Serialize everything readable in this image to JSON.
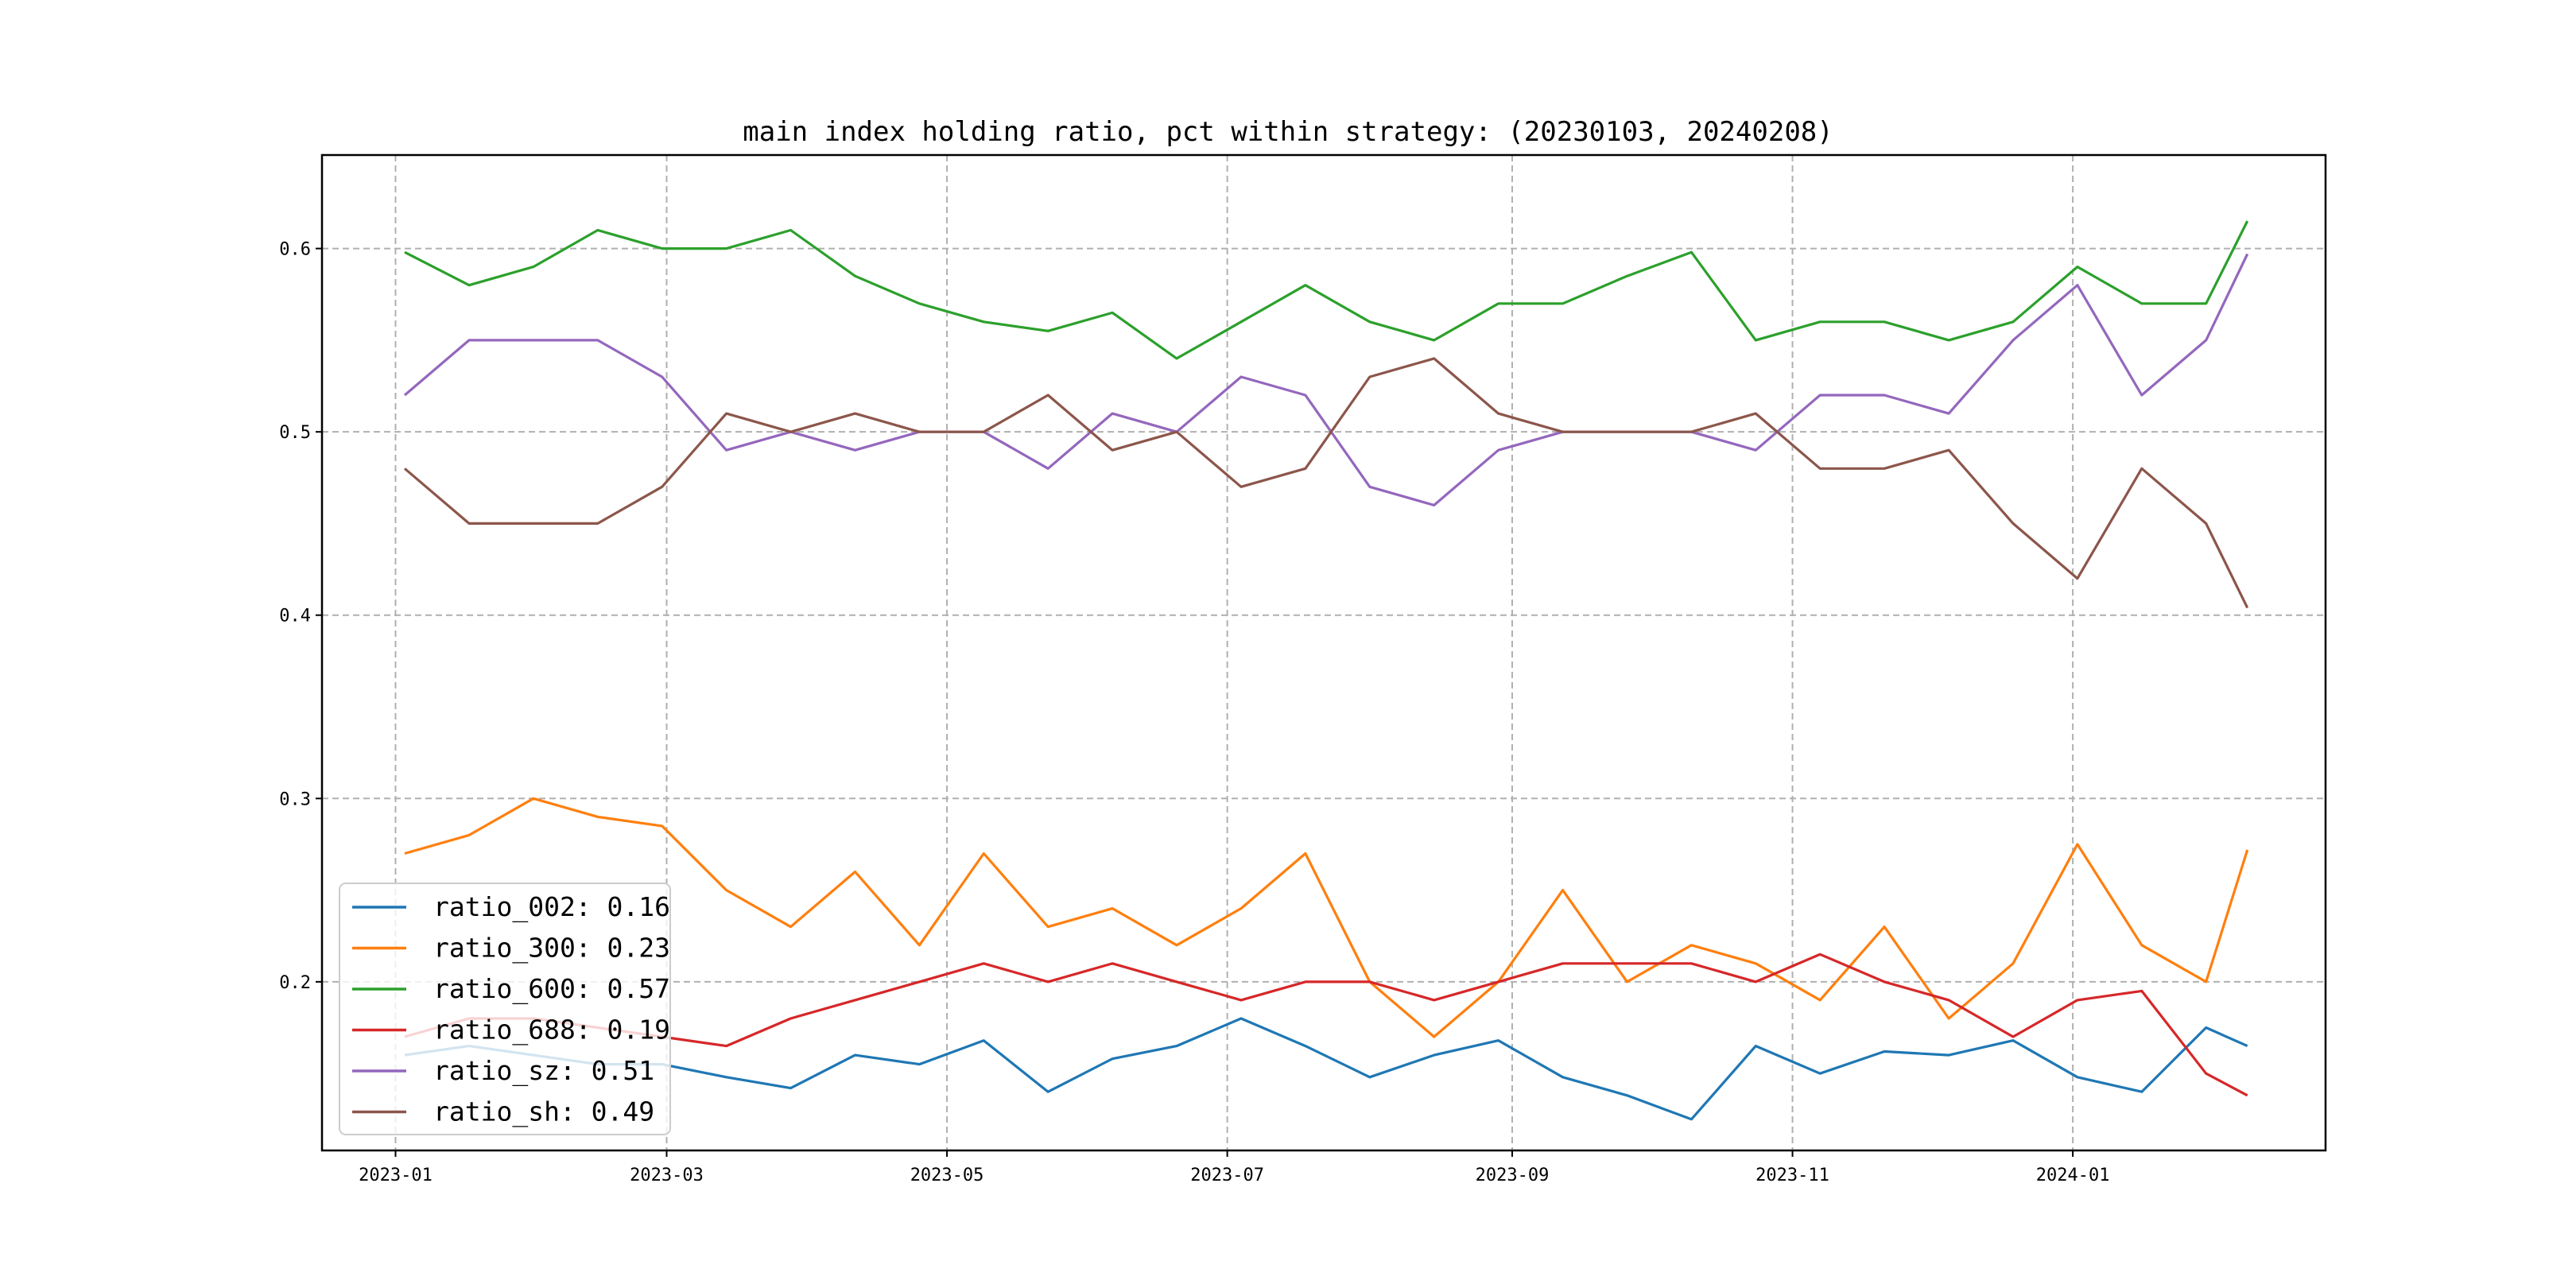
{
  "chart_data": {
    "type": "line",
    "title": "main index holding ratio, pct within strategy: (20230103, 20240208)",
    "xlabel": "",
    "ylabel": "",
    "x_range": [
      "2022-12-16",
      "2024-02-25"
    ],
    "ylim": [
      0.108,
      0.651
    ],
    "x_ticks": [
      {
        "date": "2023-01-01",
        "label": "2023-01"
      },
      {
        "date": "2023-03-01",
        "label": "2023-03"
      },
      {
        "date": "2023-05-01",
        "label": "2023-05"
      },
      {
        "date": "2023-07-01",
        "label": "2023-07"
      },
      {
        "date": "2023-09-01",
        "label": "2023-09"
      },
      {
        "date": "2023-11-01",
        "label": "2023-11"
      },
      {
        "date": "2024-01-01",
        "label": "2024-01"
      }
    ],
    "y_ticks": [
      {
        "value": 0.2,
        "label": "0.2"
      },
      {
        "value": 0.3,
        "label": "0.3"
      },
      {
        "value": 0.4,
        "label": "0.4"
      },
      {
        "value": 0.5,
        "label": "0.5"
      },
      {
        "value": 0.6,
        "label": "0.6"
      }
    ],
    "grid": true,
    "legend_position": "lower-left",
    "x": [
      "2023-01-03",
      "2023-01-17",
      "2023-01-31",
      "2023-02-14",
      "2023-02-28",
      "2023-03-14",
      "2023-03-28",
      "2023-04-11",
      "2023-04-25",
      "2023-05-09",
      "2023-05-23",
      "2023-06-06",
      "2023-06-20",
      "2023-07-04",
      "2023-07-18",
      "2023-08-01",
      "2023-08-15",
      "2023-08-29",
      "2023-09-12",
      "2023-09-26",
      "2023-10-10",
      "2023-10-24",
      "2023-11-07",
      "2023-11-21",
      "2023-12-05",
      "2023-12-19",
      "2024-01-02",
      "2024-01-16",
      "2024-01-30",
      "2024-02-08"
    ],
    "series": [
      {
        "name": "ratio_002",
        "label": "ratio_002: 0.16",
        "color": "#1f77b4",
        "values": [
          0.16,
          0.165,
          0.16,
          0.155,
          0.155,
          0.148,
          0.142,
          0.16,
          0.155,
          0.168,
          0.14,
          0.158,
          0.165,
          0.18,
          0.165,
          0.148,
          0.16,
          0.168,
          0.148,
          0.138,
          0.125,
          0.165,
          0.15,
          0.162,
          0.16,
          0.168,
          0.148,
          0.14,
          0.175,
          0.165
        ]
      },
      {
        "name": "ratio_300",
        "label": "ratio_300: 0.23",
        "color": "#ff7f0e",
        "values": [
          0.27,
          0.28,
          0.3,
          0.29,
          0.285,
          0.25,
          0.23,
          0.26,
          0.22,
          0.27,
          0.23,
          0.24,
          0.22,
          0.24,
          0.27,
          0.2,
          0.17,
          0.2,
          0.25,
          0.2,
          0.22,
          0.21,
          0.19,
          0.23,
          0.18,
          0.21,
          0.275,
          0.22,
          0.2,
          0.272
        ]
      },
      {
        "name": "ratio_600",
        "label": "ratio_600: 0.57",
        "color": "#2ca02c",
        "values": [
          0.598,
          0.58,
          0.59,
          0.61,
          0.6,
          0.6,
          0.61,
          0.585,
          0.57,
          0.56,
          0.555,
          0.565,
          0.54,
          0.56,
          0.58,
          0.56,
          0.55,
          0.57,
          0.57,
          0.585,
          0.598,
          0.55,
          0.56,
          0.56,
          0.55,
          0.56,
          0.59,
          0.57,
          0.57,
          0.615
        ]
      },
      {
        "name": "ratio_688",
        "label": "ratio_688: 0.19",
        "color": "#d62728",
        "values": [
          0.17,
          0.18,
          0.18,
          0.175,
          0.17,
          0.165,
          0.18,
          0.19,
          0.2,
          0.21,
          0.2,
          0.21,
          0.2,
          0.19,
          0.2,
          0.2,
          0.19,
          0.2,
          0.21,
          0.21,
          0.21,
          0.2,
          0.215,
          0.2,
          0.19,
          0.17,
          0.19,
          0.195,
          0.15,
          0.138
        ]
      },
      {
        "name": "ratio_sz",
        "label": "ratio_sz: 0.51",
        "color": "#9467bd",
        "values": [
          0.52,
          0.55,
          0.55,
          0.55,
          0.53,
          0.49,
          0.5,
          0.49,
          0.5,
          0.5,
          0.48,
          0.51,
          0.5,
          0.53,
          0.52,
          0.47,
          0.46,
          0.49,
          0.5,
          0.5,
          0.5,
          0.49,
          0.52,
          0.52,
          0.51,
          0.55,
          0.58,
          0.52,
          0.55,
          0.597
        ]
      },
      {
        "name": "ratio_sh",
        "label": "ratio_sh: 0.49",
        "color": "#8c564b",
        "values": [
          0.48,
          0.45,
          0.45,
          0.45,
          0.47,
          0.51,
          0.5,
          0.51,
          0.5,
          0.5,
          0.52,
          0.49,
          0.5,
          0.47,
          0.48,
          0.53,
          0.54,
          0.51,
          0.5,
          0.5,
          0.5,
          0.51,
          0.48,
          0.48,
          0.49,
          0.45,
          0.42,
          0.48,
          0.45,
          0.404
        ]
      }
    ]
  }
}
